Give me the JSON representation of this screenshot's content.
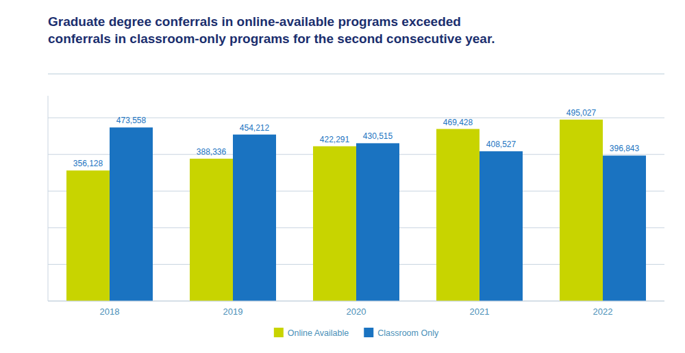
{
  "chart_data": {
    "type": "bar",
    "title": "Graduate degree conferrals in online-available programs exceeded\nconferrals in classroom-only programs for the second consecutive year.",
    "categories": [
      "2018",
      "2019",
      "2020",
      "2021",
      "2022"
    ],
    "series": [
      {
        "name": "Online Available",
        "color": "#c8d400",
        "values": [
          356128,
          388336,
          422291,
          469428,
          495027
        ],
        "value_labels": [
          "356,128",
          "388,336",
          "422,291",
          "469,428",
          "495,027"
        ]
      },
      {
        "name": "Classroom Only",
        "color": "#1a73c1",
        "values": [
          473558,
          454212,
          430515,
          408527,
          396843
        ],
        "value_labels": [
          "473,558",
          "454,212",
          "430,515",
          "408,527",
          "396,843"
        ]
      }
    ],
    "ylim": [
      0,
      560000
    ],
    "yticks": [
      0,
      100000,
      200000,
      300000,
      400000,
      500000
    ],
    "grid": true,
    "data_labels": true,
    "tick_labels": "x",
    "legend": "bottom"
  }
}
